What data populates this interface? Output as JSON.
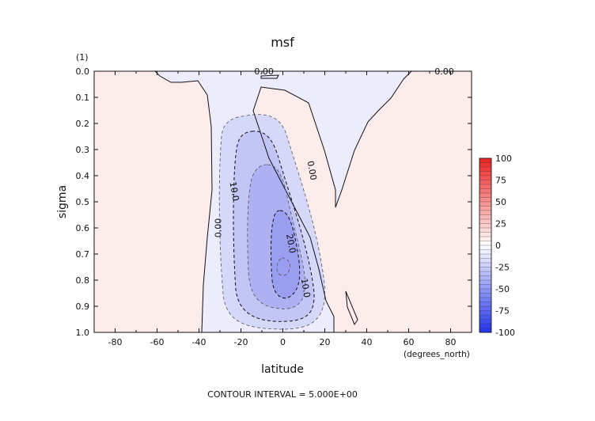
{
  "chart_data": {
    "type": "contour",
    "title": "msf",
    "xlabel": "latitude",
    "ylabel": "sigma",
    "y_units": "(1)",
    "x_units": "(degrees_north)",
    "footer": "CONTOUR INTERVAL = 5.000E+00",
    "xlim": [
      -90,
      90
    ],
    "ylim": [
      1.0,
      0.0
    ],
    "x_ticks": [
      -80,
      -60,
      -40,
      -20,
      0,
      20,
      40,
      60,
      80
    ],
    "y_ticks": [
      0.0,
      0.1,
      0.2,
      0.3,
      0.4,
      0.5,
      0.6,
      0.7,
      0.8,
      0.9,
      1.0
    ],
    "y_tick_labels": [
      "0.0",
      "0.1",
      "0.2",
      "0.3",
      "0.4",
      "0.5",
      "0.6",
      "0.7",
      "0.8",
      "0.9",
      "1.0"
    ],
    "contour_labels": [
      {
        "text": "0.00",
        "lat": -9,
        "sigma": 0.0
      },
      {
        "text": "0.00",
        "lat": 77,
        "sigma": 0.0
      },
      {
        "text": "0.00",
        "lat": 14,
        "sigma": 0.38
      },
      {
        "text": "0.00",
        "lat": -31,
        "sigma": 0.6
      },
      {
        "text": "10.0",
        "lat": -23,
        "sigma": 0.46
      },
      {
        "text": "20.0",
        "lat": 4,
        "sigma": 0.66
      },
      {
        "text": "10.0",
        "lat": 11,
        "sigma": 0.83
      }
    ],
    "colorbar": {
      "ticks": [
        100,
        75,
        50,
        25,
        0,
        -25,
        -50,
        -75,
        -100
      ],
      "positive_color": "#ee2222",
      "negative_color": "#2233ee"
    },
    "fills": {
      "positive_weak": "#fdecec",
      "negative_weak": "#ececfd",
      "neg5": "#d6d8fa",
      "neg10": "#c2c5f6",
      "neg15": "#adb1f2",
      "neg20": "#999ef0"
    }
  }
}
